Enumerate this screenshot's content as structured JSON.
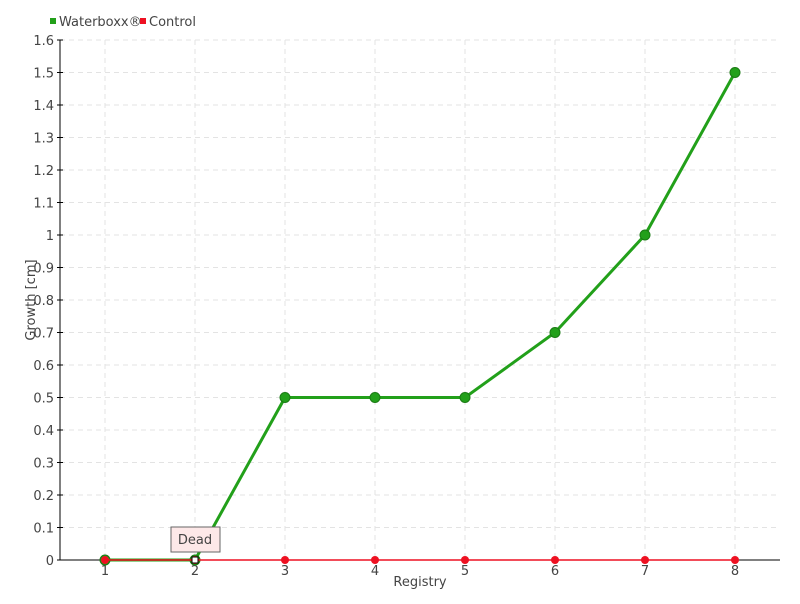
{
  "chart_data": {
    "type": "line",
    "title": "",
    "xlabel": "Registry",
    "ylabel": "Growth [cm]",
    "categories": [
      "1",
      "2",
      "3",
      "4",
      "5",
      "6",
      "7",
      "8"
    ],
    "ylim": [
      0,
      1.6
    ],
    "yticks": [
      "0",
      "0.1",
      "0.2",
      "0.3",
      "0.4",
      "0.5",
      "0.6",
      "0.7",
      "0.8",
      "0.9",
      "1",
      "1.1",
      "1.2",
      "1.3",
      "1.4",
      "1.5",
      "1.6"
    ],
    "grid": true,
    "legend_position": "top-left",
    "series": [
      {
        "name": "Waterboxx®",
        "color": "#22a01a",
        "values": [
          0,
          0,
          0.5,
          0.5,
          0.5,
          0.7,
          1.0,
          1.5
        ]
      },
      {
        "name": "Control",
        "color": "#ee1122",
        "values": [
          0,
          0,
          0,
          0,
          0,
          0,
          0,
          0
        ]
      }
    ],
    "annotations": [
      {
        "text": "Dead",
        "series": "Control",
        "x": "2"
      }
    ]
  }
}
